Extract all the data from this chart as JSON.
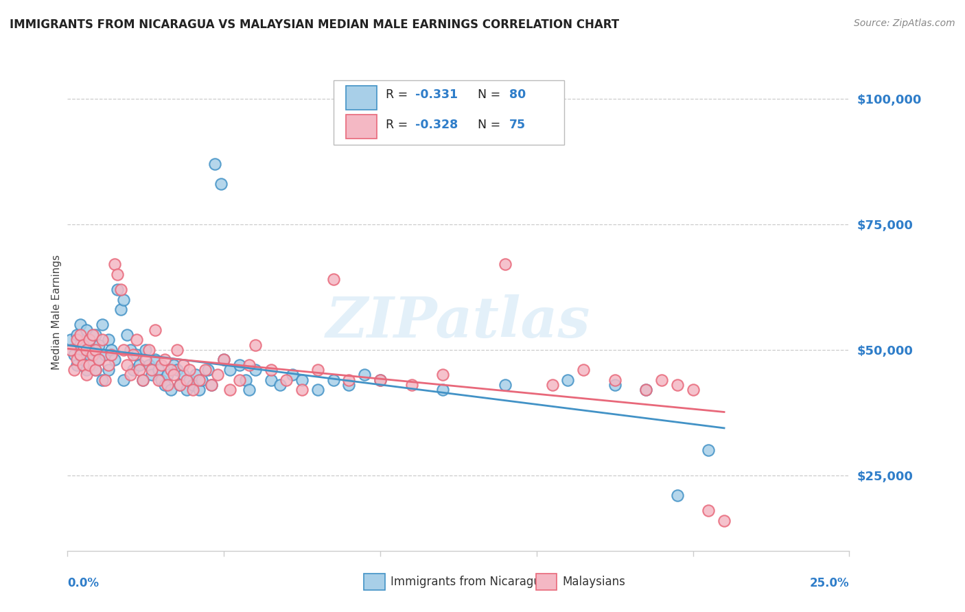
{
  "title": "IMMIGRANTS FROM NICARAGUA VS MALAYSIAN MEDIAN MALE EARNINGS CORRELATION CHART",
  "source": "Source: ZipAtlas.com",
  "ylabel": "Median Male Earnings",
  "ytick_labels": [
    "$25,000",
    "$50,000",
    "$75,000",
    "$100,000"
  ],
  "ytick_values": [
    25000,
    50000,
    75000,
    100000
  ],
  "ymin": 10000,
  "ymax": 105000,
  "xmin": 0.0,
  "xmax": 0.25,
  "blue_color": "#a8cfe8",
  "pink_color": "#f4b8c4",
  "blue_edge_color": "#4292c6",
  "pink_edge_color": "#e8687a",
  "blue_line_color": "#4292c6",
  "pink_line_color": "#e8687a",
  "label_color": "#2e7dc9",
  "title_color": "#222222",
  "source_color": "#888888",
  "grid_color": "#cccccc",
  "watermark": "ZIPatlas",
  "legend_r1_val": "-0.331",
  "legend_n1_val": "80",
  "legend_r2_val": "-0.328",
  "legend_n2_val": "75",
  "blue_x": [
    0.001,
    0.002,
    0.003,
    0.003,
    0.004,
    0.004,
    0.005,
    0.005,
    0.006,
    0.006,
    0.007,
    0.007,
    0.008,
    0.008,
    0.009,
    0.009,
    0.01,
    0.01,
    0.011,
    0.011,
    0.012,
    0.013,
    0.013,
    0.014,
    0.015,
    0.016,
    0.017,
    0.018,
    0.018,
    0.019,
    0.02,
    0.021,
    0.022,
    0.023,
    0.024,
    0.025,
    0.026,
    0.027,
    0.028,
    0.029,
    0.03,
    0.031,
    0.032,
    0.033,
    0.034,
    0.035,
    0.036,
    0.037,
    0.038,
    0.039,
    0.04,
    0.041,
    0.042,
    0.043,
    0.045,
    0.046,
    0.047,
    0.049,
    0.05,
    0.052,
    0.055,
    0.057,
    0.058,
    0.06,
    0.065,
    0.068,
    0.072,
    0.075,
    0.08,
    0.085,
    0.09,
    0.095,
    0.1,
    0.12,
    0.14,
    0.16,
    0.175,
    0.185,
    0.195,
    0.205
  ],
  "blue_y": [
    52000,
    49000,
    53000,
    47000,
    50000,
    55000,
    48000,
    51000,
    46000,
    54000,
    49000,
    52000,
    47000,
    50000,
    53000,
    46000,
    51000,
    48000,
    55000,
    44000,
    49000,
    46000,
    52000,
    50000,
    48000,
    62000,
    58000,
    60000,
    44000,
    53000,
    50000,
    46000,
    49000,
    47000,
    44000,
    50000,
    47000,
    45000,
    48000,
    46000,
    44000,
    43000,
    45000,
    42000,
    47000,
    46000,
    43000,
    45000,
    42000,
    44000,
    43000,
    45000,
    42000,
    44000,
    46000,
    43000,
    87000,
    83000,
    48000,
    46000,
    47000,
    44000,
    42000,
    46000,
    44000,
    43000,
    45000,
    44000,
    42000,
    44000,
    43000,
    45000,
    44000,
    42000,
    43000,
    44000,
    43000,
    42000,
    21000,
    30000
  ],
  "pink_x": [
    0.001,
    0.002,
    0.003,
    0.003,
    0.004,
    0.004,
    0.005,
    0.005,
    0.006,
    0.006,
    0.007,
    0.007,
    0.008,
    0.008,
    0.009,
    0.009,
    0.01,
    0.011,
    0.012,
    0.013,
    0.014,
    0.015,
    0.016,
    0.017,
    0.018,
    0.019,
    0.02,
    0.021,
    0.022,
    0.023,
    0.024,
    0.025,
    0.026,
    0.027,
    0.028,
    0.029,
    0.03,
    0.031,
    0.032,
    0.033,
    0.034,
    0.035,
    0.036,
    0.037,
    0.038,
    0.039,
    0.04,
    0.042,
    0.044,
    0.046,
    0.048,
    0.05,
    0.052,
    0.055,
    0.058,
    0.06,
    0.065,
    0.07,
    0.075,
    0.08,
    0.085,
    0.09,
    0.1,
    0.11,
    0.12,
    0.14,
    0.155,
    0.165,
    0.175,
    0.185,
    0.19,
    0.195,
    0.2,
    0.205,
    0.21
  ],
  "pink_y": [
    50000,
    46000,
    52000,
    48000,
    49000,
    53000,
    47000,
    51000,
    45000,
    50000,
    52000,
    47000,
    49000,
    53000,
    46000,
    50000,
    48000,
    52000,
    44000,
    47000,
    49000,
    67000,
    65000,
    62000,
    50000,
    47000,
    45000,
    49000,
    52000,
    46000,
    44000,
    48000,
    50000,
    46000,
    54000,
    44000,
    47000,
    48000,
    43000,
    46000,
    45000,
    50000,
    43000,
    47000,
    44000,
    46000,
    42000,
    44000,
    46000,
    43000,
    45000,
    48000,
    42000,
    44000,
    47000,
    51000,
    46000,
    44000,
    42000,
    46000,
    64000,
    44000,
    44000,
    43000,
    45000,
    67000,
    43000,
    46000,
    44000,
    42000,
    44000,
    43000,
    42000,
    18000,
    16000
  ]
}
